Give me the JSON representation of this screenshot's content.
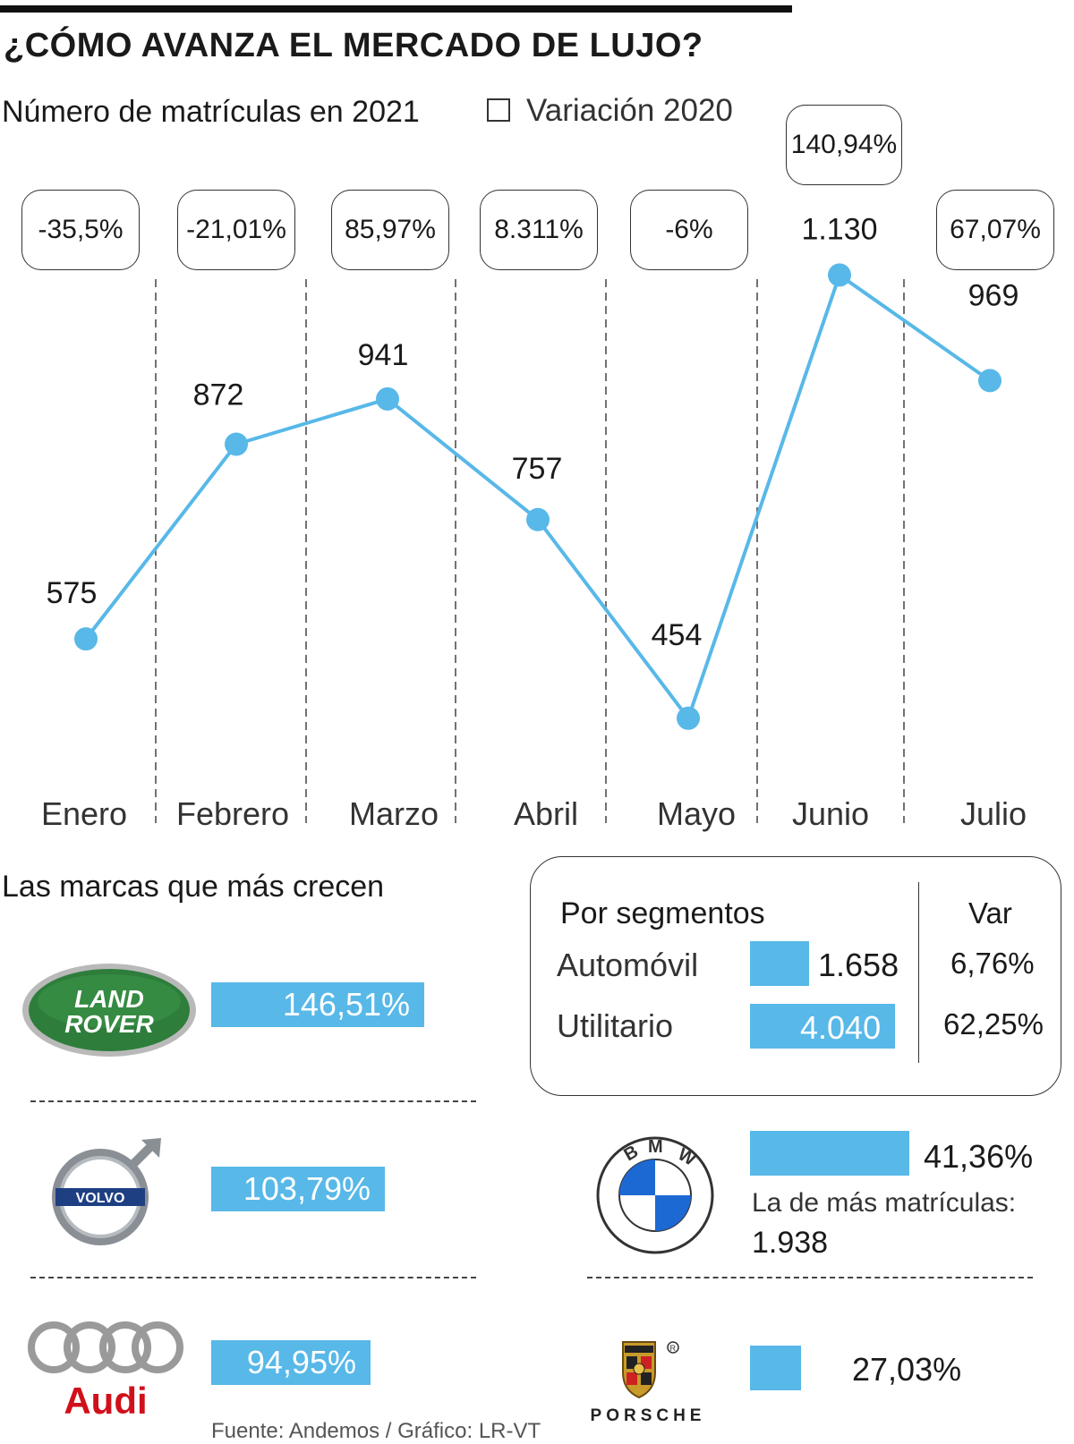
{
  "header": {
    "title": "¿CÓMO AVANZA EL MERCADO DE LUJO?",
    "subtitle": "Número de matrículas en 2021",
    "legend_label": "Variación 2020"
  },
  "chart_data": {
    "type": "line",
    "categories": [
      "Enero",
      "Febrero",
      "Marzo",
      "Abril",
      "Mayo",
      "Junio",
      "Julio"
    ],
    "values": [
      575,
      872,
      941,
      757,
      454,
      1130,
      969
    ],
    "value_labels": [
      "575",
      "872",
      "941",
      "757",
      "454",
      "1.130",
      "969"
    ],
    "variation_2020": [
      "-35,5%",
      "-21,01%",
      "85,97%",
      "8.311%",
      "-6%",
      "140,94%",
      "67,07%"
    ],
    "title": "Número de matrículas en 2021",
    "legend": [
      "Variación 2020"
    ],
    "color": "#58b8e8",
    "grid": "dashed vertical separators"
  },
  "brands": {
    "title": "Las marcas que más crecen",
    "items": [
      {
        "brand": "LAND ROVER",
        "growth": "146,51%",
        "growth_value": 146.51
      },
      {
        "brand": "VOLVO",
        "growth": "103,79%",
        "growth_value": 103.79
      },
      {
        "brand": "Audi",
        "growth": "94,95%",
        "growth_value": 94.95
      },
      {
        "brand": "BMW",
        "growth": "41,36%",
        "growth_value": 41.36,
        "note": "La de más matrículas:",
        "note_value": "1.938"
      },
      {
        "brand": "PORSCHE",
        "growth": "27,03%",
        "growth_value": 27.03
      }
    ]
  },
  "segments": {
    "title": "Por segmentos",
    "var_header": "Var",
    "rows": [
      {
        "label": "Automóvil",
        "value": "1.658",
        "value_num": 1658,
        "var": "6,76%"
      },
      {
        "label": "Utilitario",
        "value": "4.040",
        "value_num": 4040,
        "var": "62,25%"
      }
    ]
  },
  "source": "Fuente: Andemos / Gráfico: LR-VT",
  "colors": {
    "accent": "#58b8e8",
    "landrover_green": "#2e7d3b",
    "audi_red": "#d0101b",
    "bmw_blue": "#1c69d4"
  }
}
